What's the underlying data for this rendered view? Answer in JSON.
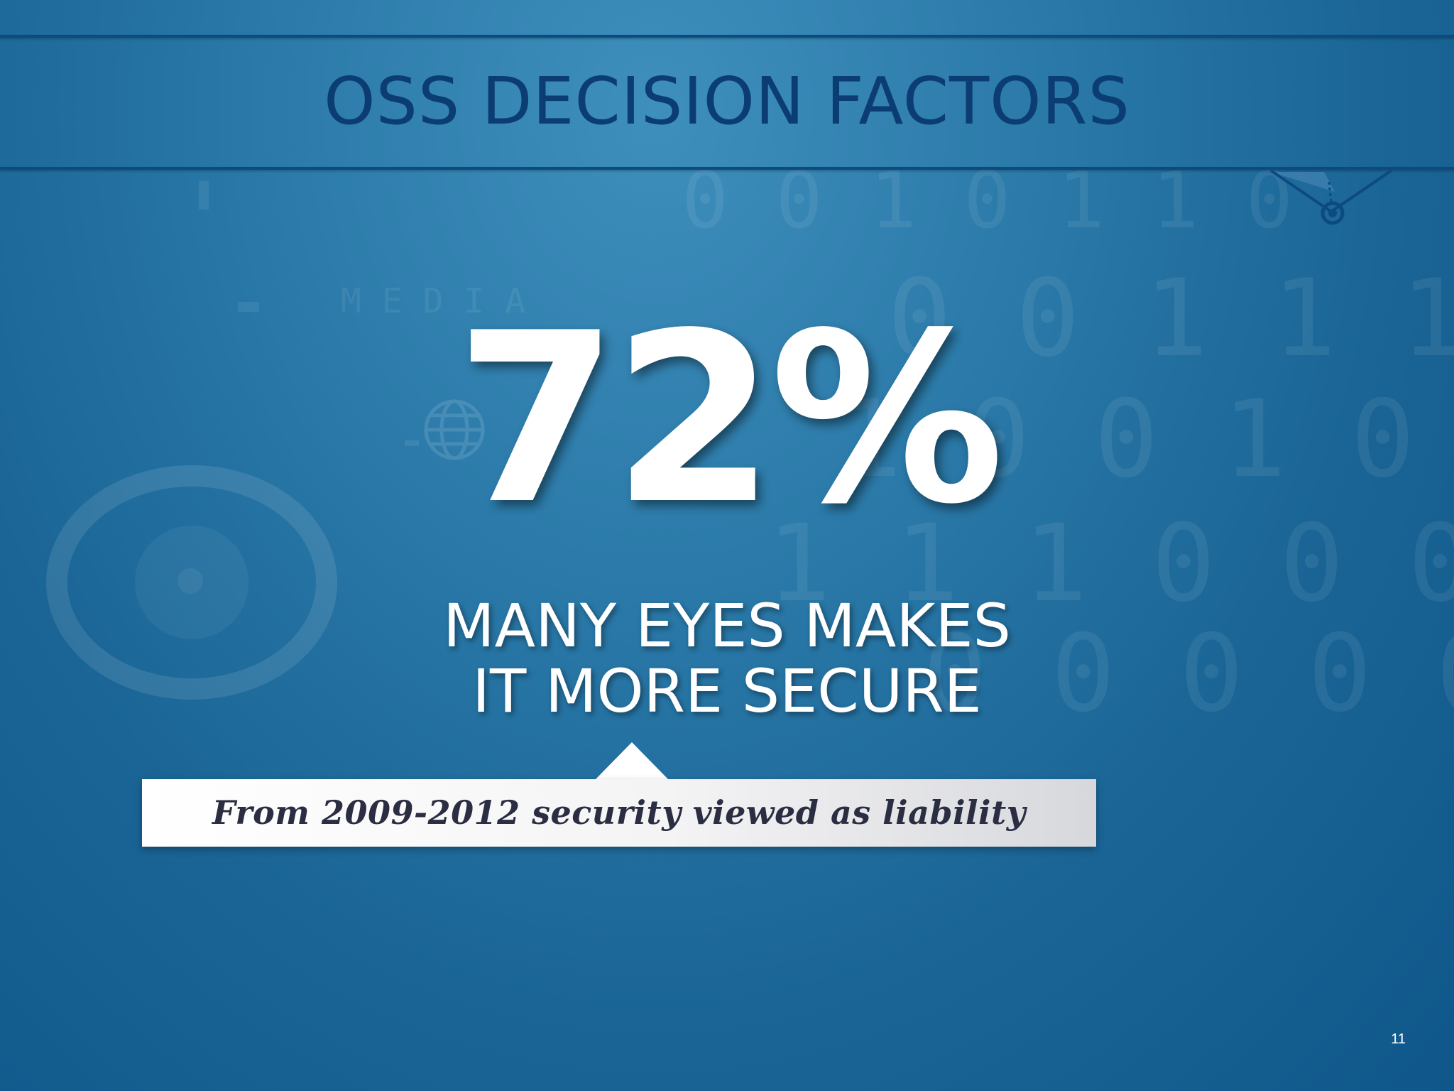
{
  "slide": {
    "title": "OSS DECISION FACTORS",
    "stat": "72%",
    "subtitle_line1": "MANY EYES MAKES",
    "subtitle_line2": "IT MORE SECURE",
    "callout": "From 2009-2012 security viewed as liability",
    "page_number": "11"
  },
  "decor": {
    "corner_icon": "target-pin-icon",
    "background_icons": [
      "eye-icon",
      "globe-icon"
    ]
  },
  "colors": {
    "title": "#0b3d72",
    "rule": "#0d4a80",
    "callout_text": "#2b2d42"
  }
}
